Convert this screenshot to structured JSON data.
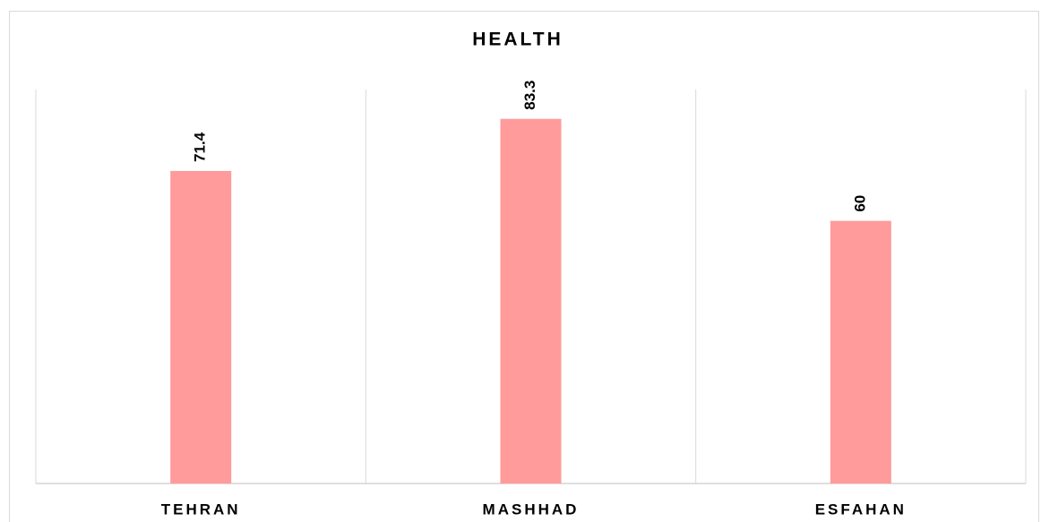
{
  "chart_data": {
    "type": "bar",
    "title": "HEALTH",
    "categories": [
      "TEHRAN",
      "MASHHAD",
      "ESFAHAN"
    ],
    "values": [
      71.4,
      83.3,
      60
    ],
    "color": "#ff9b9b",
    "ylim": [
      0,
      90
    ]
  }
}
